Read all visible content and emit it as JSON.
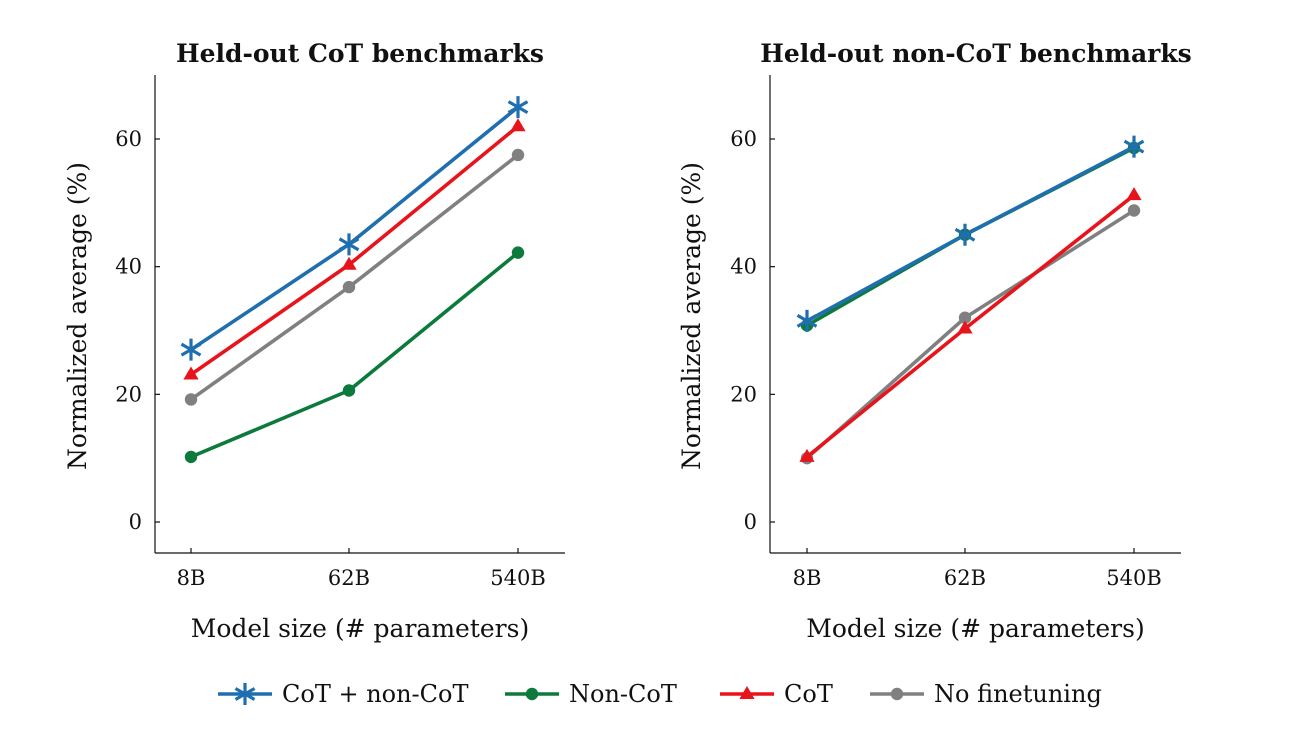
{
  "chart_data": [
    {
      "type": "line",
      "title": "Held-out CoT benchmarks",
      "xlabel": "Model size (# parameters)",
      "ylabel": "Normalized average (%)",
      "categories": [
        "8B",
        "62B",
        "540B"
      ],
      "yticks": [
        "0",
        "20",
        "40",
        "60"
      ],
      "ylim": [
        -5,
        70
      ],
      "series": [
        {
          "name": "CoT + non-CoT",
          "values": [
            27.0,
            43.5,
            65.0
          ],
          "color": "#1f6fb0",
          "marker": "star"
        },
        {
          "name": "Non-CoT",
          "values": [
            10.2,
            20.6,
            42.2
          ],
          "color": "#0b7a3b",
          "marker": "circle"
        },
        {
          "name": "CoT",
          "values": [
            23.1,
            40.3,
            62.0
          ],
          "color": "#e8141b",
          "marker": "triangle"
        },
        {
          "name": "No finetuning",
          "values": [
            19.2,
            36.8,
            57.5
          ],
          "color": "#808080",
          "marker": "circle"
        }
      ]
    },
    {
      "type": "line",
      "title": "Held-out non-CoT benchmarks",
      "xlabel": "Model size (# parameters)",
      "ylabel": "Normalized average (%)",
      "categories": [
        "8B",
        "62B",
        "540B"
      ],
      "yticks": [
        "0",
        "20",
        "40",
        "60"
      ],
      "ylim": [
        -5,
        70
      ],
      "series": [
        {
          "name": "CoT + non-CoT",
          "values": [
            31.5,
            45.0,
            58.8
          ],
          "color": "#1f6fb0",
          "marker": "star"
        },
        {
          "name": "Non-CoT",
          "values": [
            30.8,
            45.0,
            58.6
          ],
          "color": "#0b7a3b",
          "marker": "circle"
        },
        {
          "name": "CoT",
          "values": [
            10.2,
            30.3,
            51.2
          ],
          "color": "#e8141b",
          "marker": "triangle"
        },
        {
          "name": "No finetuning",
          "values": [
            10.0,
            32.0,
            48.8
          ],
          "color": "#808080",
          "marker": "circle"
        }
      ]
    }
  ],
  "legend": {
    "placement": "bottom",
    "items": [
      {
        "label": "CoT + non-CoT",
        "color": "#1f6fb0",
        "marker": "star"
      },
      {
        "label": "Non-CoT",
        "color": "#0b7a3b",
        "marker": "circle"
      },
      {
        "label": "CoT",
        "color": "#e8141b",
        "marker": "triangle"
      },
      {
        "label": "No finetuning",
        "color": "#808080",
        "marker": "circle"
      }
    ]
  }
}
